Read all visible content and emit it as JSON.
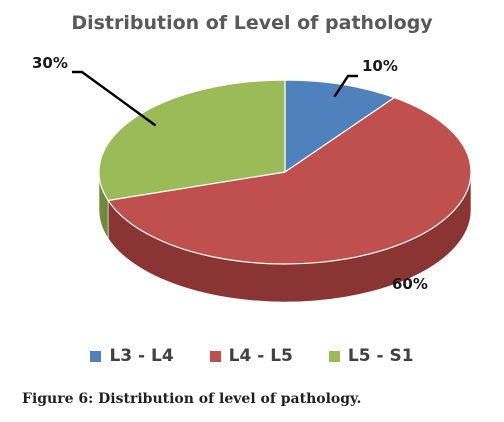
{
  "chart_data": {
    "type": "pie",
    "title": "Distribution of Level of pathology",
    "categories": [
      "L3 - L4",
      "L4 - L5",
      "L5 - S1"
    ],
    "values": [
      10,
      60,
      30
    ],
    "labels": [
      "10%",
      "60%",
      "30%"
    ],
    "colors": [
      "#4f81bd",
      "#c0504d",
      "#9bbb59"
    ],
    "side_colors": [
      "#375a85",
      "#8a3433",
      "#6e8a3c"
    ],
    "legend_position": "bottom",
    "three_d": true
  },
  "caption": "Figure 6: Distribution of level of pathology."
}
